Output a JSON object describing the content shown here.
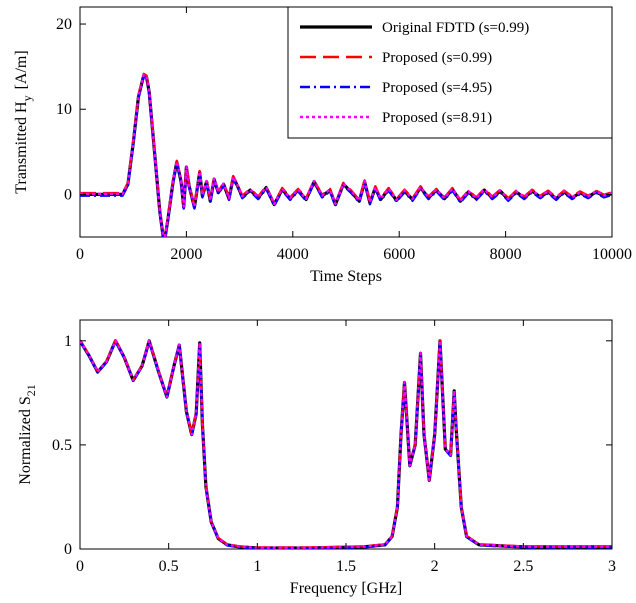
{
  "chart_data": [
    {
      "type": "line",
      "xlabel": "Time Steps",
      "ylabel_main": "Transmitted H",
      "ylabel_sub": "y",
      "ylabel_unit": "[A/m]",
      "xlim": [
        0,
        10000
      ],
      "ylim": [
        -5,
        22
      ],
      "xticks": [
        0,
        2000,
        4000,
        6000,
        8000,
        10000
      ],
      "xtick_labels": [
        "0",
        "2000",
        "4000",
        "6000",
        "8000",
        "10000"
      ],
      "yticks": [
        0,
        10,
        20
      ],
      "ytick_labels": [
        "0",
        "10",
        "20"
      ],
      "grid": false,
      "legend_position": "top-right",
      "legend": [
        {
          "label": "Original FDTD (s=0.99)",
          "color": "#000000",
          "dash": "solid"
        },
        {
          "label": "Proposed (s=0.99)",
          "color": "#ff0000",
          "dash": "long-dash"
        },
        {
          "label": "Proposed (s=4.95)",
          "color": "#0000ff",
          "dash": "dash-dot"
        },
        {
          "label": "Proposed (s=8.91)",
          "color": "#ff00ff",
          "dash": "dotted"
        }
      ],
      "x": [
        0,
        800,
        900,
        1000,
        1100,
        1200,
        1250,
        1300,
        1400,
        1500,
        1580,
        1650,
        1750,
        1820,
        1900,
        1950,
        2000,
        2050,
        2150,
        2250,
        2300,
        2380,
        2450,
        2520,
        2600,
        2700,
        2800,
        2880,
        2960,
        3050,
        3200,
        3350,
        3500,
        3650,
        3800,
        3950,
        4100,
        4250,
        4400,
        4550,
        4700,
        4800,
        4950,
        5100,
        5250,
        5350,
        5450,
        5550,
        5650,
        5800,
        5950,
        6100,
        6250,
        6400,
        6550,
        6700,
        6850,
        7000,
        7150,
        7300,
        7450,
        7600,
        7750,
        7900,
        8050,
        8200,
        8350,
        8500,
        8650,
        8800,
        8950,
        9100,
        9250,
        9400,
        9550,
        9700,
        9850,
        10000
      ],
      "y": [
        0,
        0,
        1.2,
        6,
        11.5,
        14,
        13.8,
        12,
        5,
        -2,
        -5.8,
        -3,
        1.5,
        3.8,
        1.5,
        -1.5,
        3.2,
        1,
        -1.5,
        2.6,
        -0.2,
        1.5,
        -0.8,
        1.8,
        0.2,
        1.2,
        -0.5,
        2,
        1,
        -0.3,
        0.5,
        -0.4,
        0.8,
        -1.2,
        0.6,
        -0.5,
        0.5,
        -0.6,
        1.5,
        -0.2,
        0.5,
        -1.2,
        1.2,
        0.3,
        -0.8,
        1.5,
        -1,
        0.8,
        -0.6,
        0.6,
        -0.7,
        0.4,
        -0.6,
        0.8,
        -0.4,
        0.5,
        -0.5,
        0.6,
        -0.8,
        0.3,
        -0.5,
        0.5,
        -0.4,
        0.4,
        -0.6,
        0.3,
        -0.4,
        0.4,
        -0.3,
        0.3,
        -0.5,
        0.3,
        -0.4,
        0.2,
        -0.3,
        0.3,
        -0.2,
        0.1
      ]
    },
    {
      "type": "line",
      "xlabel": "Frequency [GHz]",
      "ylabel_main": "Normalized S",
      "ylabel_sub": "21",
      "xlim": [
        0,
        3
      ],
      "ylim": [
        0,
        1.1
      ],
      "xticks": [
        0,
        0.5,
        1,
        1.5,
        2,
        2.5,
        3
      ],
      "xtick_labels": [
        "0",
        "0.5",
        "1",
        "1.5",
        "2",
        "2.5",
        "3"
      ],
      "yticks": [
        0,
        0.5,
        1
      ],
      "ytick_labels": [
        "0",
        "0.5",
        "1"
      ],
      "grid": false,
      "x": [
        0,
        0.05,
        0.1,
        0.15,
        0.2,
        0.25,
        0.3,
        0.35,
        0.39,
        0.44,
        0.49,
        0.53,
        0.56,
        0.6,
        0.63,
        0.655,
        0.675,
        0.69,
        0.71,
        0.74,
        0.78,
        0.83,
        0.9,
        1.0,
        1.3,
        1.6,
        1.72,
        1.76,
        1.79,
        1.81,
        1.83,
        1.86,
        1.89,
        1.92,
        1.94,
        1.97,
        2.0,
        2.03,
        2.06,
        2.09,
        2.11,
        2.12,
        2.15,
        2.18,
        2.25,
        2.5,
        3.0
      ],
      "y": [
        1.0,
        0.93,
        0.85,
        0.9,
        1.0,
        0.92,
        0.81,
        0.88,
        1.0,
        0.86,
        0.73,
        0.88,
        0.98,
        0.66,
        0.55,
        0.65,
        0.99,
        0.6,
        0.3,
        0.13,
        0.05,
        0.02,
        0.01,
        0.005,
        0.005,
        0.01,
        0.02,
        0.06,
        0.2,
        0.55,
        0.8,
        0.4,
        0.5,
        0.94,
        0.55,
        0.33,
        0.55,
        1.0,
        0.48,
        0.45,
        0.76,
        0.6,
        0.2,
        0.06,
        0.02,
        0.01,
        0.01
      ]
    }
  ]
}
